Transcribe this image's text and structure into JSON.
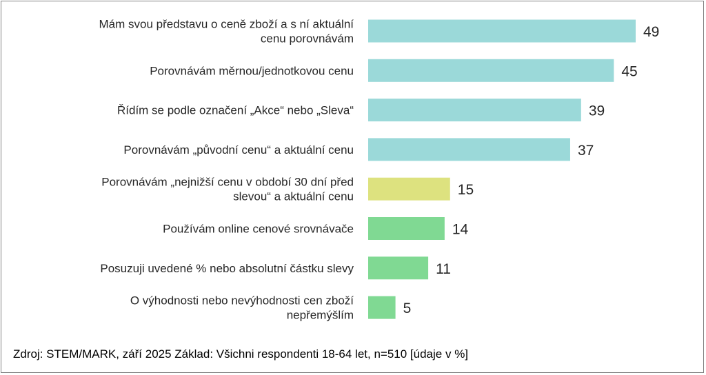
{
  "chart_data": {
    "type": "bar",
    "orientation": "horizontal",
    "categories": [
      [
        "Mám svou představu o ceně zboží a s ní aktuální",
        "cenu porovnávám"
      ],
      [
        "Porovnávám měrnou/jednotkovou cenu"
      ],
      [
        "Řídím se podle označení „Akce“ nebo „Sleva“"
      ],
      [
        "Porovnávám „původní cenu“ a aktuální cenu"
      ],
      [
        "Porovnávám „nejnižší cenu v období 30 dní před",
        "slevou“ a aktuální cenu"
      ],
      [
        "Používám online cenové srovnávače"
      ],
      [
        "Posuzuji uvedené % nebo absolutní částku slevy"
      ],
      [
        "O výhodnosti nebo nevýhodnosti cen zboží",
        "nepřemýšlím"
      ]
    ],
    "values": [
      49,
      45,
      39,
      37,
      15,
      14,
      11,
      5
    ],
    "bar_colors": [
      "#9bd9d9",
      "#9bd9d9",
      "#9bd9d9",
      "#9bd9d9",
      "#dde27f",
      "#80d993",
      "#80d993",
      "#80d993"
    ],
    "xlim": [
      0,
      49
    ],
    "grid": false,
    "legend": "none",
    "unit": "%"
  },
  "footer": {
    "source": "Zdroj: STEM/MARK, září 2025 Základ: Všichni respondenti 18-64 let, n=510 [údaje v %]"
  }
}
